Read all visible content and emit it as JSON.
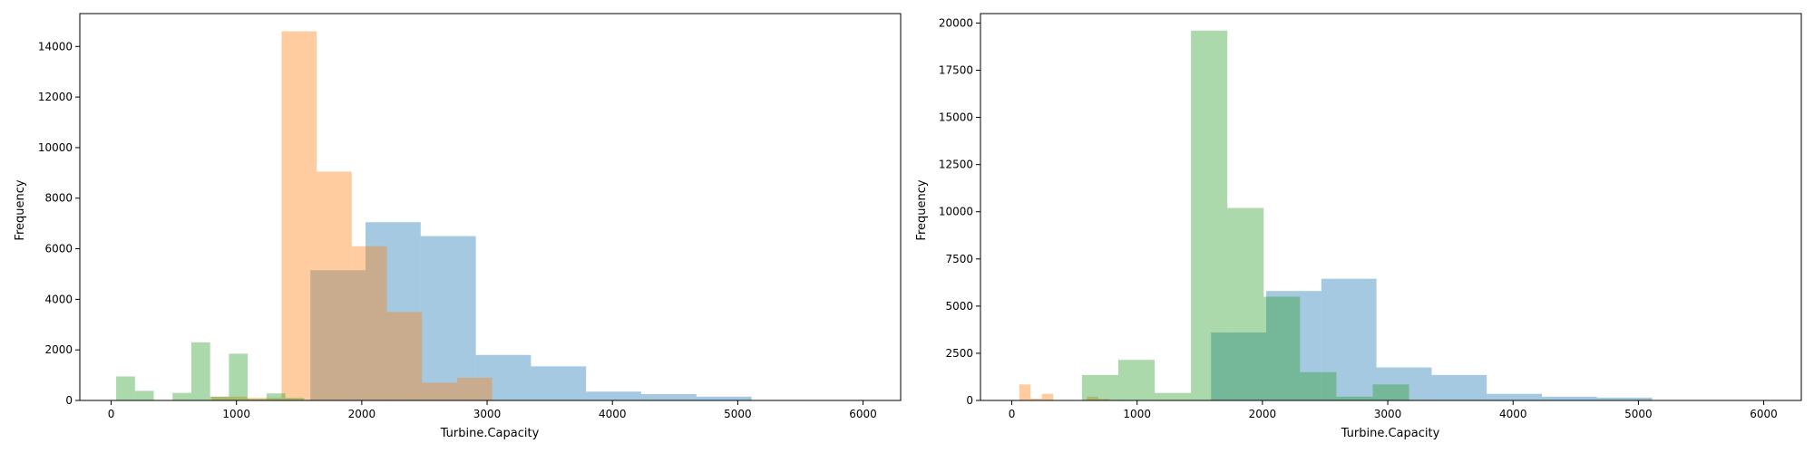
{
  "chart_data": [
    {
      "type": "histogram",
      "xlabel": "Turbine.Capacity",
      "ylabel": "Frequency",
      "xlim": [
        -250,
        6300
      ],
      "ylim": [
        0,
        15300
      ],
      "xticks": [
        0,
        1000,
        2000,
        3000,
        4000,
        5000,
        6000
      ],
      "yticks": [
        0,
        2000,
        4000,
        6000,
        8000,
        10000,
        12000,
        14000
      ],
      "grid": false,
      "legend": "none",
      "series": [
        {
          "color": "#1f77b4",
          "alpha": 0.4,
          "bins": [
            {
              "x0": 1590,
              "x1": 2030,
              "value": 5150
            },
            {
              "x0": 2030,
              "x1": 2470,
              "value": 7050
            },
            {
              "x0": 2470,
              "x1": 2910,
              "value": 6500
            },
            {
              "x0": 2910,
              "x1": 3350,
              "value": 1800
            },
            {
              "x0": 3350,
              "x1": 3790,
              "value": 1350
            },
            {
              "x0": 3790,
              "x1": 4230,
              "value": 350
            },
            {
              "x0": 4230,
              "x1": 4670,
              "value": 250
            },
            {
              "x0": 4670,
              "x1": 5110,
              "value": 150
            },
            {
              "x0": 5110,
              "x1": 5550,
              "value": 20
            },
            {
              "x0": 5550,
              "x1": 5990,
              "value": 10
            }
          ]
        },
        {
          "color": "#ff7f0e",
          "alpha": 0.4,
          "bins": [
            {
              "x0": 800,
              "x1": 1080,
              "value": 150
            },
            {
              "x0": 1080,
              "x1": 1360,
              "value": 100
            },
            {
              "x0": 1360,
              "x1": 1640,
              "value": 14600
            },
            {
              "x0": 1640,
              "x1": 1920,
              "value": 9050
            },
            {
              "x0": 1920,
              "x1": 2200,
              "value": 6100
            },
            {
              "x0": 2200,
              "x1": 2480,
              "value": 3500
            },
            {
              "x0": 2480,
              "x1": 2760,
              "value": 700
            },
            {
              "x0": 2760,
              "x1": 3040,
              "value": 900
            }
          ]
        },
        {
          "color": "#2ca02c",
          "alpha": 0.4,
          "bins": [
            {
              "x0": 40,
              "x1": 190,
              "value": 950
            },
            {
              "x0": 190,
              "x1": 340,
              "value": 380
            },
            {
              "x0": 490,
              "x1": 640,
              "value": 300
            },
            {
              "x0": 640,
              "x1": 790,
              "value": 2300
            },
            {
              "x0": 790,
              "x1": 940,
              "value": 150
            },
            {
              "x0": 940,
              "x1": 1090,
              "value": 1850
            },
            {
              "x0": 1090,
              "x1": 1240,
              "value": 50
            },
            {
              "x0": 1240,
              "x1": 1390,
              "value": 280
            },
            {
              "x0": 1390,
              "x1": 1540,
              "value": 100
            }
          ]
        }
      ]
    },
    {
      "type": "histogram",
      "xlabel": "Turbine.Capacity",
      "ylabel": "Frequency",
      "xlim": [
        -250,
        6300
      ],
      "ylim": [
        0,
        20500
      ],
      "xticks": [
        0,
        1000,
        2000,
        3000,
        4000,
        5000,
        6000
      ],
      "yticks": [
        0,
        2500,
        5000,
        7500,
        10000,
        12500,
        15000,
        17500,
        20000
      ],
      "grid": false,
      "legend": "none",
      "series": [
        {
          "color": "#1f77b4",
          "alpha": 0.4,
          "bins": [
            {
              "x0": 1590,
              "x1": 2030,
              "value": 3600
            },
            {
              "x0": 2030,
              "x1": 2470,
              "value": 5800
            },
            {
              "x0": 2470,
              "x1": 2910,
              "value": 6450
            },
            {
              "x0": 2910,
              "x1": 3350,
              "value": 1750
            },
            {
              "x0": 3350,
              "x1": 3790,
              "value": 1350
            },
            {
              "x0": 3790,
              "x1": 4230,
              "value": 350
            },
            {
              "x0": 4230,
              "x1": 4670,
              "value": 200
            },
            {
              "x0": 4670,
              "x1": 5110,
              "value": 150
            },
            {
              "x0": 5110,
              "x1": 5550,
              "value": 20
            },
            {
              "x0": 5550,
              "x1": 5990,
              "value": 10
            }
          ]
        },
        {
          "color": "#ff7f0e",
          "alpha": 0.4,
          "bins": [
            {
              "x0": 60,
              "x1": 150,
              "value": 850
            },
            {
              "x0": 150,
              "x1": 240,
              "value": 100
            },
            {
              "x0": 240,
              "x1": 330,
              "value": 350
            },
            {
              "x0": 330,
              "x1": 420,
              "value": 20
            },
            {
              "x0": 600,
              "x1": 690,
              "value": 200
            },
            {
              "x0": 690,
              "x1": 780,
              "value": 80
            }
          ]
        },
        {
          "color": "#2ca02c",
          "alpha": 0.4,
          "bins": [
            {
              "x0": 560,
              "x1": 850,
              "value": 1350
            },
            {
              "x0": 850,
              "x1": 1140,
              "value": 2150
            },
            {
              "x0": 1140,
              "x1": 1430,
              "value": 400
            },
            {
              "x0": 1430,
              "x1": 1720,
              "value": 19600
            },
            {
              "x0": 1720,
              "x1": 2010,
              "value": 10200
            },
            {
              "x0": 2010,
              "x1": 2300,
              "value": 5500
            },
            {
              "x0": 2300,
              "x1": 2590,
              "value": 1500
            },
            {
              "x0": 2590,
              "x1": 2880,
              "value": 200
            },
            {
              "x0": 2880,
              "x1": 3170,
              "value": 850
            }
          ]
        }
      ]
    }
  ]
}
